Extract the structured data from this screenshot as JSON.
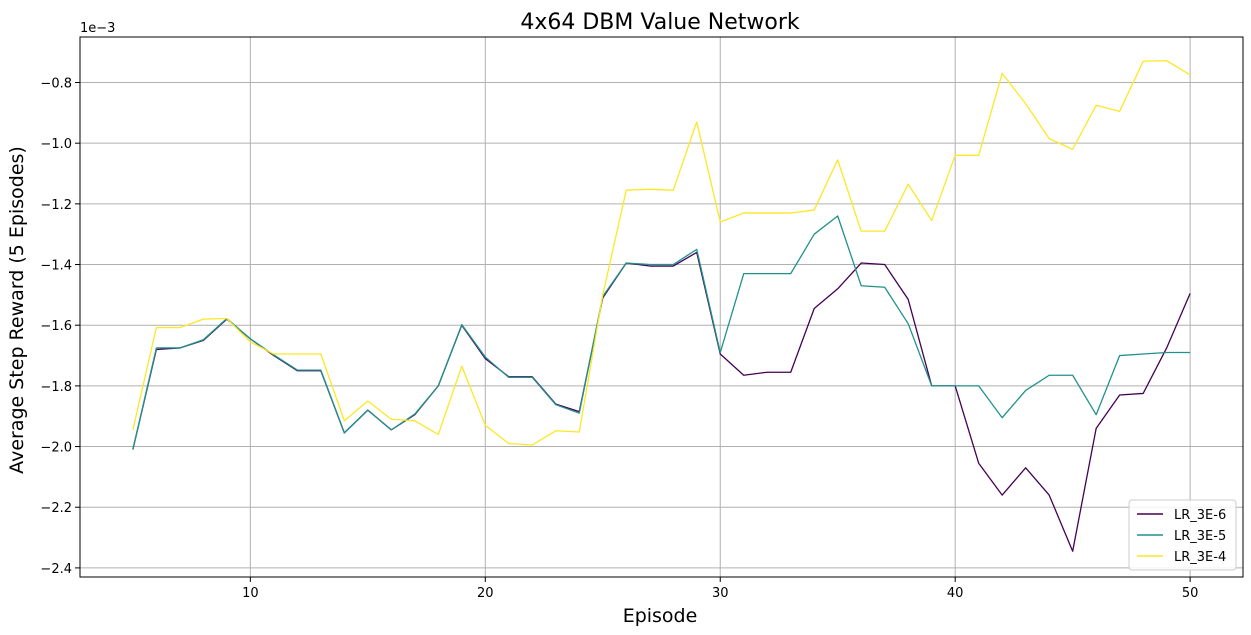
{
  "chart_data": {
    "type": "line",
    "title": "4x64 DBM Value Network",
    "xlabel": "Episode",
    "ylabel": "Average Step Reward (5 Episodes)",
    "y_scale_label": "1e−3",
    "xlim": [
      2.75,
      52.25
    ],
    "ylim": [
      -2.43,
      -0.65
    ],
    "x_ticks": [
      10,
      20,
      30,
      40,
      50
    ],
    "x_tick_labels": [
      "10",
      "20",
      "30",
      "40",
      "50"
    ],
    "y_ticks": [
      -2.4,
      -2.2,
      -2.0,
      -1.8,
      -1.6,
      -1.4,
      -1.2,
      -1.0,
      -0.8
    ],
    "y_tick_labels": [
      "−2.4",
      "−2.2",
      "−2.0",
      "−1.8",
      "−1.6",
      "−1.4",
      "−1.2",
      "−1.0",
      "−0.8"
    ],
    "grid": true,
    "legend_position": "bottom-right",
    "x": [
      5,
      6,
      7,
      8,
      9,
      10,
      11,
      12,
      13,
      14,
      15,
      16,
      17,
      18,
      19,
      20,
      21,
      22,
      23,
      24,
      25,
      26,
      27,
      28,
      29,
      30,
      31,
      32,
      33,
      34,
      35,
      36,
      37,
      38,
      39,
      40,
      41,
      42,
      43,
      44,
      45,
      46,
      47,
      48,
      49,
      50
    ],
    "series": [
      {
        "name": "LR_3E-6",
        "color": "#440154",
        "values": [
          -2.01,
          -1.68,
          -1.675,
          -1.65,
          -1.58,
          -1.645,
          -1.7,
          -1.75,
          -1.75,
          -1.955,
          -1.88,
          -1.945,
          -1.895,
          -1.8,
          -1.6,
          -1.71,
          -1.77,
          -1.77,
          -1.86,
          -1.885,
          -1.51,
          -1.395,
          -1.405,
          -1.405,
          -1.36,
          -1.695,
          -1.765,
          -1.755,
          -1.755,
          -1.545,
          -1.48,
          -1.395,
          -1.4,
          -1.515,
          -1.8,
          -1.8,
          -2.055,
          -2.16,
          -2.07,
          -2.16,
          -2.345,
          -1.94,
          -1.83,
          -1.825,
          -1.675,
          -1.495
        ]
      },
      {
        "name": "LR_3E-5",
        "color": "#21918c",
        "values": [
          -2.01,
          -1.675,
          -1.675,
          -1.648,
          -1.578,
          -1.645,
          -1.698,
          -1.748,
          -1.748,
          -1.955,
          -1.88,
          -1.945,
          -1.893,
          -1.8,
          -1.598,
          -1.705,
          -1.772,
          -1.772,
          -1.862,
          -1.89,
          -1.505,
          -1.395,
          -1.4,
          -1.4,
          -1.35,
          -1.69,
          -1.43,
          -1.43,
          -1.43,
          -1.3,
          -1.24,
          -1.47,
          -1.475,
          -1.595,
          -1.8,
          -1.8,
          -1.8,
          -1.905,
          -1.815,
          -1.765,
          -1.765,
          -1.895,
          -1.7,
          -1.695,
          -1.69,
          -1.69
        ]
      },
      {
        "name": "LR_3E-4",
        "color": "#fde725",
        "values": [
          -1.945,
          -1.608,
          -1.608,
          -1.58,
          -1.578,
          -1.655,
          -1.695,
          -1.695,
          -1.695,
          -1.915,
          -1.85,
          -1.91,
          -1.915,
          -1.96,
          -1.735,
          -1.93,
          -1.99,
          -1.995,
          -1.948,
          -1.952,
          -1.5,
          -1.155,
          -1.152,
          -1.155,
          -0.93,
          -1.26,
          -1.23,
          -1.23,
          -1.23,
          -1.22,
          -1.055,
          -1.29,
          -1.29,
          -1.135,
          -1.255,
          -1.04,
          -1.04,
          -0.77,
          -0.87,
          -0.985,
          -1.02,
          -0.875,
          -0.895,
          -0.73,
          -0.728,
          -0.775
        ]
      }
    ]
  }
}
